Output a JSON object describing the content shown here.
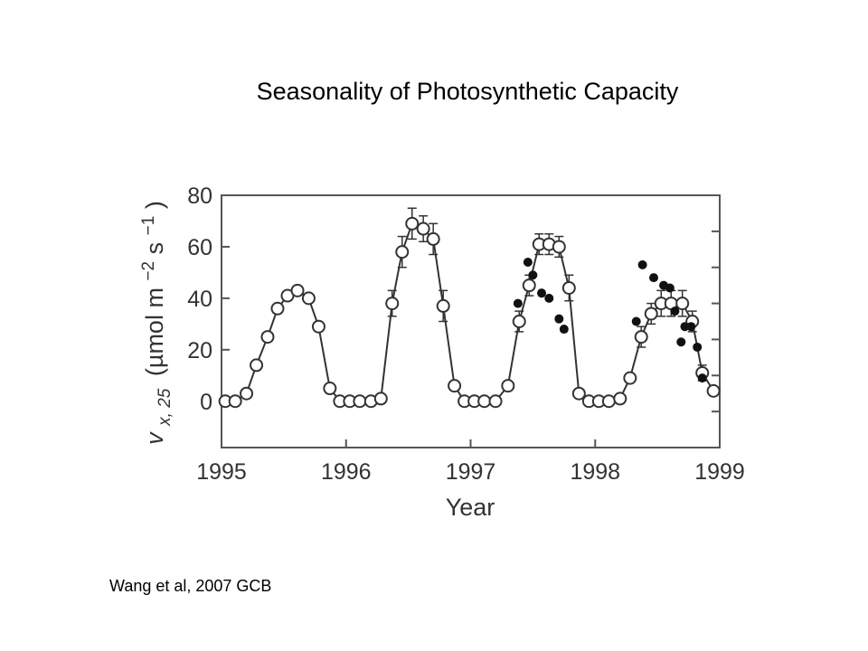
{
  "slide": {
    "title": "Seasonality of Photosynthetic Capacity",
    "citation": "Wang et al, 2007 GCB"
  },
  "chart_data": {
    "type": "scatter",
    "title": "",
    "xlabel": "Year",
    "ylabel": "v x, 25 (µmol m −2 s −1)",
    "ylabel_parts": {
      "symbol": "v",
      "subscript": "x, 25",
      "units_open": "(µmol m",
      "exp1": "−2",
      "units_mid": " s",
      "exp2": "−1",
      "units_close": ")"
    },
    "xlim": [
      1995,
      1999
    ],
    "ylim": [
      -18,
      80
    ],
    "x_ticks": [
      1995,
      1996,
      1997,
      1998,
      1999
    ],
    "x_tick_labels": [
      "1995",
      "1996",
      "1997",
      "1998",
      "1999"
    ],
    "y_ticks": [
      0,
      20,
      40,
      60,
      80
    ],
    "y_tick_labels": [
      "0",
      "20",
      "40",
      "60",
      "80"
    ],
    "grid": false,
    "series": [
      {
        "marker": "open-circle",
        "line": true,
        "color": "#333333",
        "points": [
          {
            "x": 1995.03,
            "y": 0
          },
          {
            "x": 1995.11,
            "y": 0
          },
          {
            "x": 1995.2,
            "y": 3
          },
          {
            "x": 1995.28,
            "y": 14
          },
          {
            "x": 1995.37,
            "y": 25
          },
          {
            "x": 1995.45,
            "y": 36
          },
          {
            "x": 1995.53,
            "y": 41
          },
          {
            "x": 1995.61,
            "y": 43
          },
          {
            "x": 1995.7,
            "y": 40
          },
          {
            "x": 1995.78,
            "y": 29
          },
          {
            "x": 1995.87,
            "y": 5
          },
          {
            "x": 1995.95,
            "y": 0
          },
          {
            "x": 1996.03,
            "y": 0
          },
          {
            "x": 1996.11,
            "y": 0
          },
          {
            "x": 1996.2,
            "y": 0
          },
          {
            "x": 1996.28,
            "y": 1
          },
          {
            "x": 1996.37,
            "y": 38,
            "err": 5
          },
          {
            "x": 1996.45,
            "y": 58,
            "err": 6
          },
          {
            "x": 1996.53,
            "y": 69,
            "err": 6
          },
          {
            "x": 1996.62,
            "y": 67,
            "err": 5
          },
          {
            "x": 1996.7,
            "y": 63,
            "err": 6
          },
          {
            "x": 1996.78,
            "y": 37,
            "err": 6
          },
          {
            "x": 1996.87,
            "y": 6
          },
          {
            "x": 1996.95,
            "y": 0
          },
          {
            "x": 1997.03,
            "y": 0
          },
          {
            "x": 1997.11,
            "y": 0
          },
          {
            "x": 1997.2,
            "y": 0
          },
          {
            "x": 1997.3,
            "y": 6
          },
          {
            "x": 1997.39,
            "y": 31,
            "err": 4
          },
          {
            "x": 1997.47,
            "y": 45,
            "err": 4
          },
          {
            "x": 1997.55,
            "y": 61,
            "err": 4
          },
          {
            "x": 1997.63,
            "y": 61,
            "err": 4
          },
          {
            "x": 1997.71,
            "y": 60,
            "err": 4
          },
          {
            "x": 1997.79,
            "y": 44,
            "err": 5
          },
          {
            "x": 1997.87,
            "y": 3
          },
          {
            "x": 1997.95,
            "y": 0
          },
          {
            "x": 1998.03,
            "y": 0
          },
          {
            "x": 1998.11,
            "y": 0
          },
          {
            "x": 1998.2,
            "y": 1
          },
          {
            "x": 1998.28,
            "y": 9
          },
          {
            "x": 1998.37,
            "y": 25,
            "err": 4
          },
          {
            "x": 1998.45,
            "y": 34,
            "err": 4
          },
          {
            "x": 1998.53,
            "y": 38,
            "err": 5
          },
          {
            "x": 1998.61,
            "y": 38,
            "err": 5
          },
          {
            "x": 1998.7,
            "y": 38,
            "err": 5
          },
          {
            "x": 1998.78,
            "y": 31,
            "err": 4
          },
          {
            "x": 1998.86,
            "y": 11,
            "err": 3
          },
          {
            "x": 1998.95,
            "y": 4
          }
        ]
      },
      {
        "marker": "filled-circle",
        "line": false,
        "color": "#111111",
        "points": [
          {
            "x": 1997.38,
            "y": 38
          },
          {
            "x": 1997.46,
            "y": 54
          },
          {
            "x": 1997.5,
            "y": 49
          },
          {
            "x": 1997.57,
            "y": 42
          },
          {
            "x": 1997.63,
            "y": 40
          },
          {
            "x": 1997.71,
            "y": 32
          },
          {
            "x": 1997.75,
            "y": 28
          },
          {
            "x": 1998.33,
            "y": 31
          },
          {
            "x": 1998.38,
            "y": 53
          },
          {
            "x": 1998.47,
            "y": 48
          },
          {
            "x": 1998.55,
            "y": 45
          },
          {
            "x": 1998.6,
            "y": 44
          },
          {
            "x": 1998.64,
            "y": 35
          },
          {
            "x": 1998.69,
            "y": 23
          },
          {
            "x": 1998.72,
            "y": 29
          },
          {
            "x": 1998.77,
            "y": 29
          },
          {
            "x": 1998.82,
            "y": 21
          },
          {
            "x": 1998.86,
            "y": 9
          }
        ]
      }
    ]
  }
}
